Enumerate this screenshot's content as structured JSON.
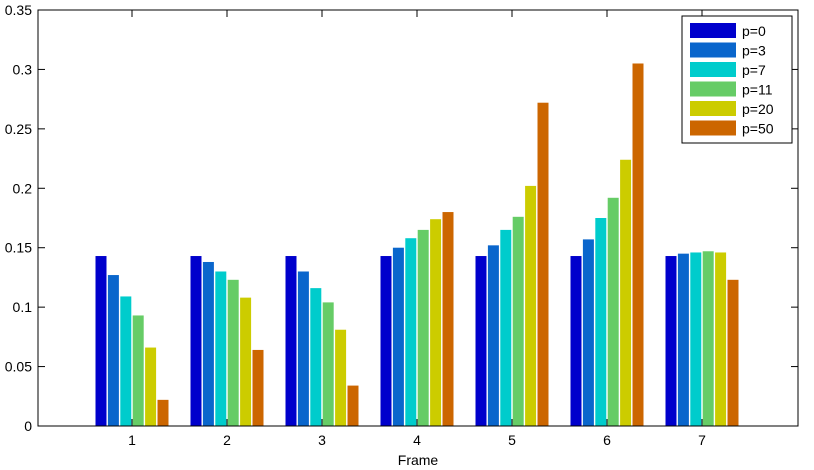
{
  "chart_data": {
    "type": "bar",
    "title": "",
    "xlabel": "Frame",
    "ylabel": "",
    "categories": [
      "1",
      "2",
      "3",
      "4",
      "5",
      "6",
      "7"
    ],
    "ylim": [
      0,
      0.35
    ],
    "yticks": [
      "0",
      "0.05",
      "0.1",
      "0.15",
      "0.2",
      "0.25",
      "0.3",
      "0.35"
    ],
    "grid": false,
    "legend_position": "top-right",
    "series": [
      {
        "name": "p=0",
        "color": "#0000cc",
        "values": [
          0.143,
          0.143,
          0.143,
          0.143,
          0.143,
          0.143,
          0.143
        ]
      },
      {
        "name": "p=3",
        "color": "#0a66cc",
        "values": [
          0.127,
          0.138,
          0.13,
          0.15,
          0.152,
          0.157,
          0.145
        ]
      },
      {
        "name": "p=7",
        "color": "#00cccc",
        "values": [
          0.109,
          0.13,
          0.116,
          0.158,
          0.165,
          0.175,
          0.146
        ]
      },
      {
        "name": "p=11",
        "color": "#66cc66",
        "values": [
          0.093,
          0.123,
          0.104,
          0.165,
          0.176,
          0.192,
          0.147
        ]
      },
      {
        "name": "p=20",
        "color": "#cccc00",
        "values": [
          0.066,
          0.108,
          0.081,
          0.174,
          0.202,
          0.224,
          0.146
        ]
      },
      {
        "name": "p=50",
        "color": "#cc6600",
        "values": [
          0.022,
          0.064,
          0.034,
          0.18,
          0.272,
          0.305,
          0.123
        ]
      }
    ]
  }
}
